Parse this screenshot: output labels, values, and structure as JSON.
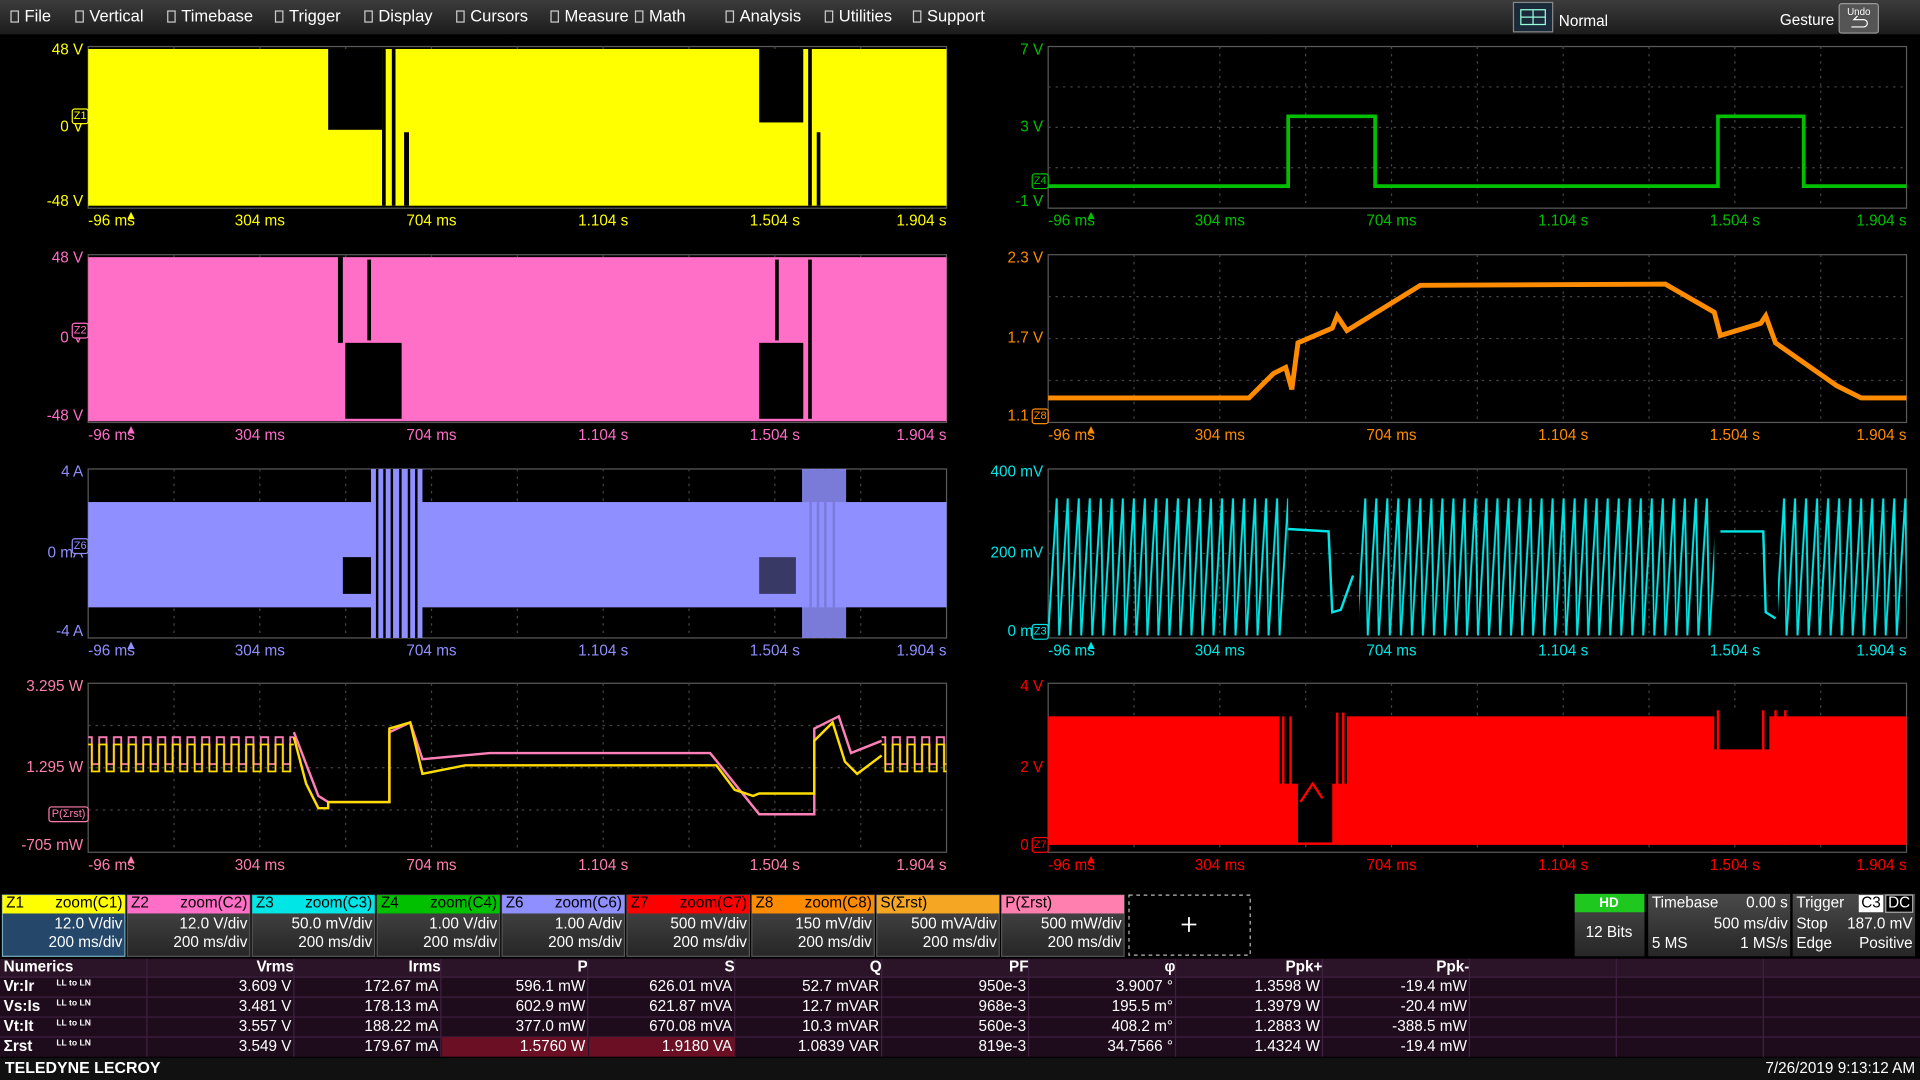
{
  "menu": [
    "File",
    "Vertical",
    "Timebase",
    "Trigger",
    "Display",
    "Cursors",
    "Measure",
    "Math",
    "Analysis",
    "Utilities",
    "Support"
  ],
  "status": {
    "mode": "Normal",
    "gesture": "Gesture",
    "undo": "Undo"
  },
  "time_axis": [
    "-96 ms",
    "304 ms",
    "704 ms",
    "1.104 s",
    "1.504 s",
    "1.904 s"
  ],
  "panels": [
    {
      "tag": "Z1",
      "color": "#ffff00",
      "y_labels": [
        "48 V",
        "0 V",
        "-48 V"
      ]
    },
    {
      "tag": "Z2",
      "color": "#ff6ec7",
      "y_labels": [
        "48 V",
        "0 V",
        "-48 V"
      ]
    },
    {
      "tag": "Z6",
      "color": "#8f8fff",
      "y_labels": [
        "4 A",
        "0 mA",
        "-4 A"
      ]
    },
    {
      "tag": "P(Σrst)",
      "color": "#ff7fae",
      "y_labels": [
        "3.295 W",
        "1.295 W",
        "-705 mW"
      ]
    },
    {
      "tag": "Z4",
      "color": "#00c000",
      "y_labels": [
        "7 V",
        "3 V",
        "-1 V"
      ]
    },
    {
      "tag": "Z8",
      "color": "#ff8c00",
      "y_labels": [
        "2.3 V",
        "1.7 V",
        "1.1 V"
      ]
    },
    {
      "tag": "Z3",
      "color": "#00e5e5",
      "y_labels": [
        "400 mV",
        "200 mV",
        "0 mV"
      ]
    },
    {
      "tag": "Z7",
      "color": "#ff0000",
      "y_labels": [
        "4 V",
        "2 V",
        "0 V"
      ]
    }
  ],
  "descriptors": [
    {
      "tag": "Z1",
      "source": "zoom(C1)",
      "color": "#ffff00",
      "vdiv": "12.0 V/div",
      "tdiv": "200 ms/div"
    },
    {
      "tag": "Z2",
      "source": "zoom(C2)",
      "color": "#ff6ec7",
      "vdiv": "12.0 V/div",
      "tdiv": "200 ms/div"
    },
    {
      "tag": "Z3",
      "source": "zoom(C3)",
      "color": "#00e5e5",
      "vdiv": "50.0 mV/div",
      "tdiv": "200 ms/div"
    },
    {
      "tag": "Z4",
      "source": "zoom(C4)",
      "color": "#00c000",
      "vdiv": "1.00 V/div",
      "tdiv": "200 ms/div"
    },
    {
      "tag": "Z6",
      "source": "zoom(C6)",
      "color": "#8f8fff",
      "vdiv": "1.00 A/div",
      "tdiv": "200 ms/div"
    },
    {
      "tag": "Z7",
      "source": "zoom(C7)",
      "color": "#ff0000",
      "vdiv": "500 mV/div",
      "tdiv": "200 ms/div"
    },
    {
      "tag": "Z8",
      "source": "zoom(C8)",
      "color": "#ff8c00",
      "vdiv": "150 mV/div",
      "tdiv": "200 ms/div"
    },
    {
      "tag": "S(Σrst)",
      "color": "#f5a623",
      "vdiv": "500 mVA/div",
      "tdiv": "200 ms/div"
    },
    {
      "tag": "P(Σrst)",
      "color": "#ff7fae",
      "vdiv": "500 mW/div",
      "tdiv": "200 ms/div"
    }
  ],
  "acquisition": {
    "badge": "HD",
    "bits": "12 Bits"
  },
  "timebase": {
    "title": "Timebase",
    "delay": "0.00 s",
    "tdiv": "500 ms/div",
    "samples": "5 MS",
    "rate": "1 MS/s"
  },
  "trigger": {
    "title": "Trigger",
    "source": "C3",
    "coupling": "DC",
    "mode": "Stop",
    "level": "187.0 mV",
    "type": "Edge",
    "slope": "Positive"
  },
  "numerics": {
    "headers": [
      "Numerics",
      "Vrms",
      "Irms",
      "P",
      "S",
      "Q",
      "PF",
      "φ",
      "Ppk+",
      "Ppk-"
    ],
    "rows": [
      {
        "label": "Vr:Ir",
        "sub": "LL to LN",
        "cells": [
          "3.609 V",
          "172.67 mA",
          "596.1 mW",
          "626.01 mVA",
          "52.7 mVAR",
          "950e-3",
          "3.9007 °",
          "1.3598 W",
          "-19.4 mW"
        ]
      },
      {
        "label": "Vs:Is",
        "sub": "LL to LN",
        "cells": [
          "3.481 V",
          "178.13 mA",
          "602.9 mW",
          "621.87 mVA",
          "12.7 mVAR",
          "968e-3",
          "195.5 m°",
          "1.3979 W",
          "-20.4 mW"
        ]
      },
      {
        "label": "Vt:It",
        "sub": "LL to LN",
        "cells": [
          "3.557 V",
          "188.22 mA",
          "377.0 mW",
          "670.08 mVA",
          "10.3 mVAR",
          "560e-3",
          "408.2 m°",
          "1.2883 W",
          "-388.5 mW"
        ]
      },
      {
        "label": "Σrst",
        "sub": "LL to LN",
        "cells": [
          "3.549 V",
          "179.67 mA",
          "1.5760 W",
          "1.9180 VA",
          "1.0839 VAR",
          "819e-3",
          "34.7566 °",
          "1.4324 W",
          "-19.4 mW"
        ]
      }
    ]
  },
  "footer": {
    "brand": "TELEDYNE LECROY",
    "timestamp": "7/26/2019 9:13:12 AM"
  }
}
